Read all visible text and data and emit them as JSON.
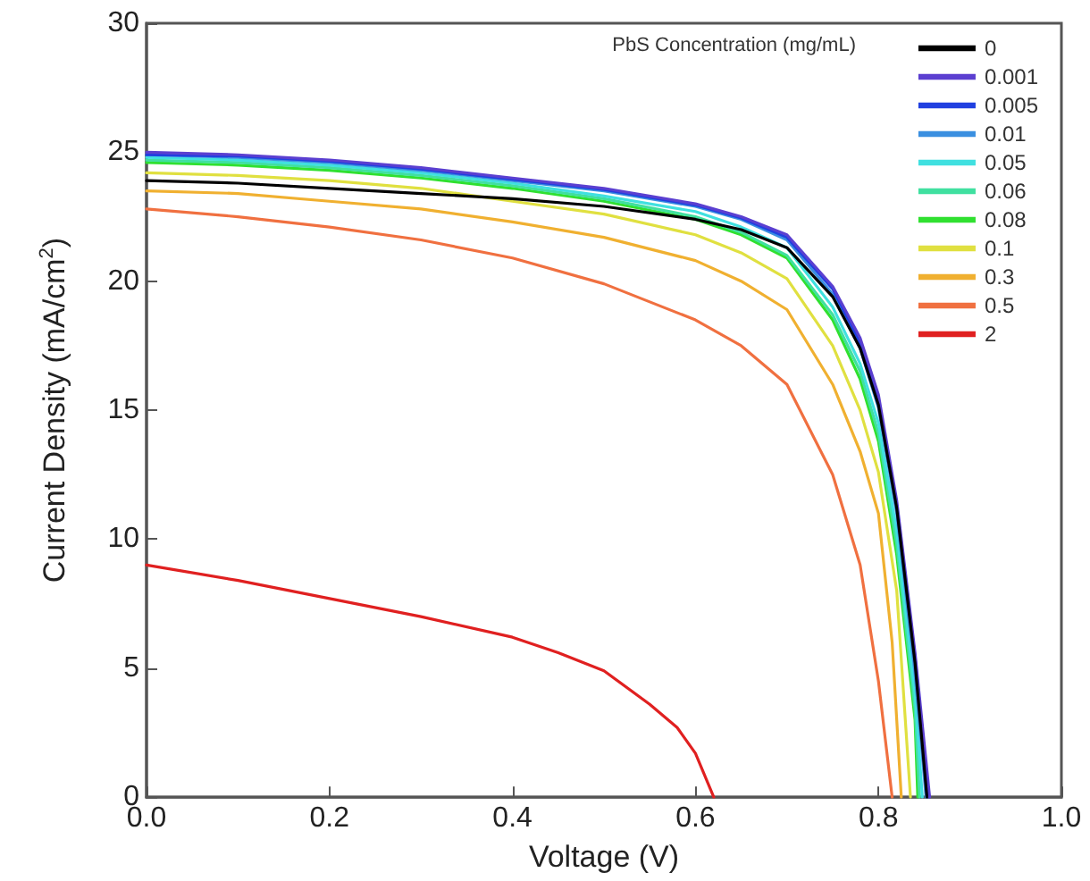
{
  "chart_data": {
    "type": "line",
    "xlabel": "Voltage (V)",
    "ylabel": "Current Density (mA/cm$^{2}$)",
    "legend_title": "PbS Concentration (mg/mL)",
    "xlim": [
      0,
      1.0
    ],
    "ylim": [
      0,
      30
    ],
    "xticks": [
      {
        "value": 0,
        "label": "0.0"
      },
      0.2,
      0.4,
      0.6,
      0.8,
      {
        "value": 1.0,
        "label": "1.0"
      }
    ],
    "yticks": [
      0,
      5,
      10,
      15,
      20,
      25,
      30
    ],
    "grid": false,
    "legend": "top right",
    "marker": "none",
    "line_style": "solid",
    "series": [
      {
        "name": "0",
        "color": "#000000",
        "x": [
          0,
          0.1,
          0.2,
          0.3,
          0.4,
          0.5,
          0.6,
          0.65,
          0.7,
          0.75,
          0.78,
          0.8,
          0.82,
          0.84,
          0.853
        ],
        "values": [
          23.9,
          23.8,
          23.6,
          23.4,
          23.2,
          22.9,
          22.4,
          22.0,
          21.3,
          19.4,
          17.4,
          15.2,
          11.2,
          5.2,
          0
        ]
      },
      {
        "name": "0.001",
        "color": "#5b3fd0",
        "x": [
          0,
          0.1,
          0.2,
          0.3,
          0.4,
          0.5,
          0.6,
          0.65,
          0.7,
          0.75,
          0.78,
          0.8,
          0.82,
          0.84,
          0.856
        ],
        "values": [
          25.0,
          24.9,
          24.7,
          24.4,
          24.0,
          23.6,
          23.0,
          22.5,
          21.8,
          19.8,
          17.8,
          15.6,
          11.5,
          5.6,
          0
        ]
      },
      {
        "name": "0.005",
        "color": "#2040e0",
        "x": [
          0,
          0.1,
          0.2,
          0.3,
          0.4,
          0.5,
          0.6,
          0.65,
          0.7,
          0.75,
          0.78,
          0.8,
          0.82,
          0.84,
          0.855
        ],
        "values": [
          24.9,
          24.85,
          24.65,
          24.35,
          23.95,
          23.55,
          22.95,
          22.45,
          21.7,
          19.7,
          17.6,
          15.4,
          11.3,
          5.4,
          0
        ]
      },
      {
        "name": "0.01",
        "color": "#3a8fe0",
        "x": [
          0,
          0.1,
          0.2,
          0.3,
          0.4,
          0.5,
          0.6,
          0.65,
          0.7,
          0.75,
          0.78,
          0.8,
          0.82,
          0.84,
          0.852
        ],
        "values": [
          24.9,
          24.8,
          24.6,
          24.3,
          23.9,
          23.5,
          22.9,
          22.4,
          21.6,
          19.5,
          17.4,
          15.1,
          11.0,
          4.8,
          0
        ]
      },
      {
        "name": "0.05",
        "color": "#40e0e0",
        "x": [
          0,
          0.1,
          0.2,
          0.3,
          0.4,
          0.5,
          0.6,
          0.65,
          0.7,
          0.75,
          0.78,
          0.8,
          0.82,
          0.84,
          0.848
        ],
        "values": [
          24.8,
          24.7,
          24.5,
          24.2,
          23.8,
          23.3,
          22.7,
          22.1,
          21.3,
          19.0,
          16.8,
          14.5,
          10.3,
          4.0,
          0
        ]
      },
      {
        "name": "0.06",
        "color": "#40e0a0",
        "x": [
          0,
          0.1,
          0.2,
          0.3,
          0.4,
          0.5,
          0.6,
          0.65,
          0.7,
          0.75,
          0.78,
          0.8,
          0.82,
          0.84,
          0.845
        ],
        "values": [
          24.7,
          24.6,
          24.4,
          24.1,
          23.7,
          23.2,
          22.5,
          21.9,
          21.0,
          18.7,
          16.5,
          14.1,
          9.8,
          3.4,
          0
        ]
      },
      {
        "name": "0.08",
        "color": "#30e030",
        "x": [
          0,
          0.1,
          0.2,
          0.3,
          0.4,
          0.5,
          0.6,
          0.65,
          0.7,
          0.75,
          0.78,
          0.8,
          0.82,
          0.84,
          0.843
        ],
        "values": [
          24.6,
          24.5,
          24.3,
          24.0,
          23.6,
          23.1,
          22.4,
          21.8,
          20.9,
          18.5,
          16.2,
          13.8,
          9.4,
          3.0,
          0
        ]
      },
      {
        "name": "0.1",
        "color": "#e0e040",
        "x": [
          0,
          0.1,
          0.2,
          0.3,
          0.4,
          0.5,
          0.6,
          0.65,
          0.7,
          0.75,
          0.78,
          0.8,
          0.82,
          0.835
        ],
        "values": [
          24.2,
          24.1,
          23.9,
          23.6,
          23.1,
          22.6,
          21.8,
          21.1,
          20.1,
          17.5,
          15.0,
          12.6,
          8.0,
          0
        ]
      },
      {
        "name": "0.3",
        "color": "#f0b030",
        "x": [
          0,
          0.1,
          0.2,
          0.3,
          0.4,
          0.5,
          0.6,
          0.65,
          0.7,
          0.75,
          0.78,
          0.8,
          0.815,
          0.825
        ],
        "values": [
          23.5,
          23.4,
          23.1,
          22.8,
          22.3,
          21.7,
          20.8,
          20.0,
          18.9,
          16.0,
          13.4,
          11.0,
          6.0,
          0
        ]
      },
      {
        "name": "0.5",
        "color": "#f07040",
        "x": [
          0,
          0.1,
          0.2,
          0.3,
          0.4,
          0.5,
          0.6,
          0.65,
          0.7,
          0.75,
          0.78,
          0.8,
          0.815
        ],
        "values": [
          22.8,
          22.5,
          22.1,
          21.6,
          20.9,
          19.9,
          18.5,
          17.5,
          16.0,
          12.5,
          9.0,
          4.5,
          0
        ]
      },
      {
        "name": "2",
        "color": "#e02020",
        "x": [
          0,
          0.1,
          0.2,
          0.3,
          0.4,
          0.45,
          0.5,
          0.55,
          0.58,
          0.6,
          0.62
        ],
        "values": [
          9.0,
          8.4,
          7.7,
          7.0,
          6.2,
          5.6,
          4.9,
          3.6,
          2.7,
          1.7,
          0
        ]
      }
    ]
  }
}
